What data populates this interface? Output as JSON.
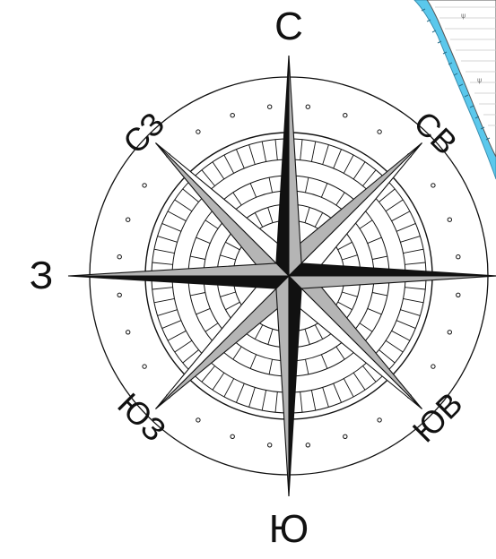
{
  "compass": {
    "labels": {
      "north": "С",
      "northeast": "СВ",
      "east": "",
      "southeast": "ЮВ",
      "south": "Ю",
      "southwest": "ЮЗ",
      "west": "З",
      "northwest": "СЗ"
    }
  },
  "colors": {
    "background": "#ffffff",
    "ink": "#111111",
    "light_point": "#b5b5b5",
    "map_water": "#5bc8ec",
    "map_land": "#ffffff"
  },
  "map_fragment": {
    "visible": true,
    "description_icon": "map-coastline-icon"
  }
}
